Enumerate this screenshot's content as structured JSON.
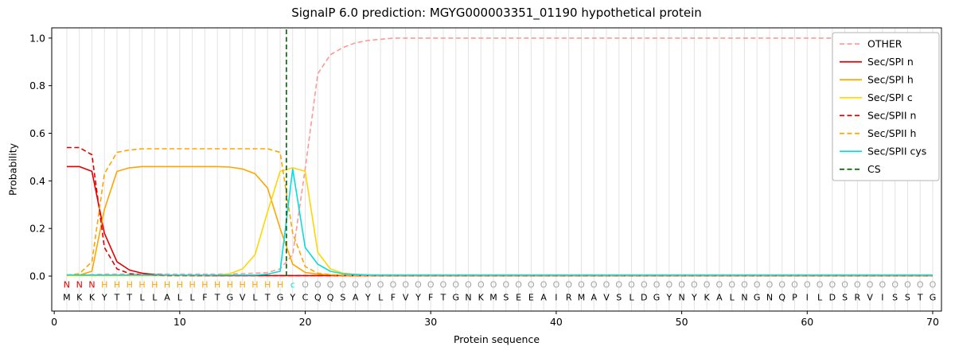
{
  "chart_data": {
    "type": "line",
    "title": "SignalP 6.0 prediction: MGYG000003351_01190 hypothetical protein",
    "xlabel": "Protein sequence",
    "ylabel": "Probability",
    "xlim": [
      -0.2,
      70.7
    ],
    "ylim": [
      -0.147,
      1.043
    ],
    "xticks": [
      0,
      10,
      20,
      30,
      40,
      50,
      60,
      70
    ],
    "yticks": [
      0,
      0.2,
      0.4,
      0.6,
      0.8,
      1.0
    ],
    "grid_color": "#e3e3e3",
    "legend": {
      "position": "upper right",
      "entries": [
        "OTHER",
        "Sec/SPI n",
        "Sec/SPI h",
        "Sec/SPI c",
        "Sec/SPII n",
        "Sec/SPII h",
        "Sec/SPII cys",
        "CS"
      ]
    },
    "sequence": "MKKYTTLLALLFTGVLTGYCQQSAYLFVYFTGNKMSEEAIRMAVSLDGYNYKALNGNQPILDSRVISSTG",
    "region_labels": "NNNHHHHHHHHHHHHHHHcOOOOOOOOOOOOOOOOOOOOOOOOOOOOOOOOOOOOOOOOOOOOOOOOOOO",
    "region_colors": {
      "N": "#e50000",
      "H": "#ffa500",
      "c": "#0adbdb",
      "O": "#a3a3a3"
    },
    "sequence_color": "#000000",
    "cs_marker": {
      "name": "CS",
      "x": 18.5,
      "color": "#006400",
      "dash": true
    },
    "series": [
      {
        "name": "OTHER",
        "color": "#ff9896",
        "dash": true,
        "values": [
          0.005,
          0.005,
          0.006,
          0.008,
          0.008,
          0.008,
          0.008,
          0.008,
          0.008,
          0.008,
          0.008,
          0.008,
          0.008,
          0.009,
          0.01,
          0.012,
          0.015,
          0.03,
          0.09,
          0.45,
          0.85,
          0.93,
          0.96,
          0.98,
          0.99,
          0.995,
          1,
          1,
          1,
          1,
          1,
          1,
          1,
          1,
          1,
          1,
          1,
          1,
          1,
          1,
          1,
          1,
          1,
          1,
          1,
          1,
          1,
          1,
          1,
          1,
          1,
          1,
          1,
          1,
          1,
          1,
          1,
          1,
          1,
          1,
          1,
          1,
          1,
          1,
          1,
          1,
          1,
          1,
          1,
          1
        ]
      },
      {
        "name": "Sec/SPI n",
        "color": "#e50000",
        "dash": false,
        "values": [
          0.46,
          0.46,
          0.44,
          0.18,
          0.06,
          0.025,
          0.012,
          0.006,
          0.004,
          0.003,
          0.002,
          0.002,
          0.002,
          0.002,
          0.002,
          0.002,
          0.002,
          0.002,
          0.002,
          0.002,
          0.002,
          0.002,
          0.002,
          0.002,
          0.002,
          0.002,
          0.002,
          0.002,
          0.002,
          0.002,
          0.002,
          0.002,
          0.002,
          0.002,
          0.002,
          0.002,
          0.002,
          0.002,
          0.002,
          0.002,
          0.002,
          0.002,
          0.002,
          0.002,
          0.002,
          0.002,
          0.002,
          0.002,
          0.002,
          0.002,
          0.002,
          0.002,
          0.002,
          0.002,
          0.002,
          0.002,
          0.002,
          0.002,
          0.002,
          0.002,
          0.002,
          0.002,
          0.002,
          0.002,
          0.002,
          0.002,
          0.002,
          0.002,
          0.002,
          0.002
        ]
      },
      {
        "name": "Sec/SPI h",
        "color": "#ffa500",
        "dash": false,
        "values": [
          0.003,
          0.004,
          0.02,
          0.28,
          0.44,
          0.455,
          0.46,
          0.46,
          0.46,
          0.46,
          0.46,
          0.46,
          0.46,
          0.458,
          0.45,
          0.43,
          0.37,
          0.2,
          0.05,
          0.015,
          0.008,
          0.005,
          0.004,
          0.003,
          0.003,
          0.003,
          0.003,
          0.003,
          0.003,
          0.003,
          0.003,
          0.003,
          0.003,
          0.003,
          0.003,
          0.003,
          0.003,
          0.003,
          0.003,
          0.003,
          0.003,
          0.003,
          0.003,
          0.003,
          0.003,
          0.003,
          0.003,
          0.003,
          0.003,
          0.003,
          0.003,
          0.003,
          0.003,
          0.003,
          0.003,
          0.003,
          0.003,
          0.003,
          0.003,
          0.003,
          0.003,
          0.003,
          0.003,
          0.003,
          0.003,
          0.003,
          0.003,
          0.003,
          0.003,
          0.003
        ]
      },
      {
        "name": "Sec/SPI c",
        "color": "#ffd700",
        "dash": false,
        "values": [
          0.002,
          0.002,
          0.002,
          0.002,
          0.002,
          0.002,
          0.002,
          0.002,
          0.002,
          0.002,
          0.002,
          0.002,
          0.004,
          0.01,
          0.03,
          0.09,
          0.27,
          0.44,
          0.455,
          0.44,
          0.1,
          0.03,
          0.012,
          0.006,
          0.003,
          0.003,
          0.003,
          0.003,
          0.003,
          0.003,
          0.003,
          0.003,
          0.003,
          0.003,
          0.003,
          0.003,
          0.003,
          0.003,
          0.003,
          0.003,
          0.003,
          0.003,
          0.003,
          0.003,
          0.003,
          0.003,
          0.003,
          0.003,
          0.003,
          0.003,
          0.003,
          0.003,
          0.003,
          0.003,
          0.003,
          0.003,
          0.003,
          0.003,
          0.003,
          0.003,
          0.003,
          0.003,
          0.003,
          0.003,
          0.003,
          0.003,
          0.003,
          0.003,
          0.003,
          0.003
        ]
      },
      {
        "name": "Sec/SPII n",
        "color": "#e50000",
        "dash": true,
        "values": [
          0.54,
          0.54,
          0.51,
          0.12,
          0.03,
          0.01,
          0.005,
          0.003,
          0.002,
          0.002,
          0.002,
          0.002,
          0.002,
          0.002,
          0.002,
          0.002,
          0.002,
          0.002,
          0.002,
          0.002,
          0.002,
          0.002,
          0.002,
          0.002,
          0.002,
          0.002,
          0.002,
          0.002,
          0.002,
          0.002,
          0.002,
          0.002,
          0.002,
          0.002,
          0.002,
          0.002,
          0.002,
          0.002,
          0.002,
          0.002,
          0.002,
          0.002,
          0.002,
          0.002,
          0.002,
          0.002,
          0.002,
          0.002,
          0.002,
          0.002,
          0.002,
          0.002,
          0.002,
          0.002,
          0.002,
          0.002,
          0.002,
          0.002,
          0.002,
          0.002,
          0.002,
          0.002,
          0.002,
          0.002,
          0.002,
          0.002,
          0.002,
          0.002,
          0.002,
          0.002
        ]
      },
      {
        "name": "Sec/SPII h",
        "color": "#ffa500",
        "dash": true,
        "values": [
          0.003,
          0.01,
          0.06,
          0.43,
          0.52,
          0.53,
          0.535,
          0.535,
          0.535,
          0.535,
          0.535,
          0.535,
          0.535,
          0.535,
          0.535,
          0.535,
          0.535,
          0.52,
          0.18,
          0.04,
          0.012,
          0.006,
          0.003,
          0.003,
          0.003,
          0.003,
          0.003,
          0.003,
          0.003,
          0.003,
          0.003,
          0.003,
          0.003,
          0.003,
          0.003,
          0.003,
          0.003,
          0.003,
          0.003,
          0.003,
          0.003,
          0.003,
          0.003,
          0.003,
          0.003,
          0.003,
          0.003,
          0.003,
          0.003,
          0.003,
          0.003,
          0.003,
          0.003,
          0.003,
          0.003,
          0.003,
          0.003,
          0.003,
          0.003,
          0.003,
          0.003,
          0.003,
          0.003,
          0.003,
          0.003,
          0.003,
          0.003,
          0.003,
          0.003,
          0.003
        ]
      },
      {
        "name": "Sec/SPII cys",
        "color": "#0adbdb",
        "dash": false,
        "values": [
          0.005,
          0.004,
          0.004,
          0.004,
          0.004,
          0.004,
          0.004,
          0.004,
          0.004,
          0.004,
          0.004,
          0.004,
          0.004,
          0.004,
          0.004,
          0.004,
          0.008,
          0.02,
          0.45,
          0.12,
          0.05,
          0.02,
          0.01,
          0.007,
          0.005,
          0.004,
          0.004,
          0.004,
          0.004,
          0.004,
          0.004,
          0.004,
          0.004,
          0.004,
          0.004,
          0.004,
          0.004,
          0.004,
          0.004,
          0.004,
          0.004,
          0.004,
          0.004,
          0.004,
          0.004,
          0.004,
          0.004,
          0.004,
          0.004,
          0.004,
          0.004,
          0.004,
          0.004,
          0.004,
          0.004,
          0.004,
          0.004,
          0.004,
          0.004,
          0.004,
          0.004,
          0.004,
          0.004,
          0.004,
          0.004,
          0.004,
          0.004,
          0.004,
          0.004,
          0.004
        ]
      }
    ]
  }
}
